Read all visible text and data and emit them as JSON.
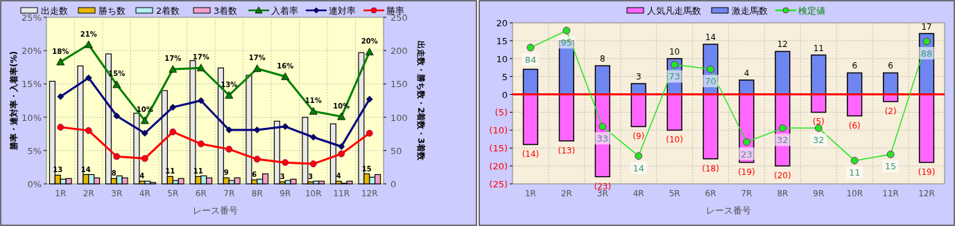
{
  "chart_data": [
    {
      "type": "bar",
      "categories": [
        "1R",
        "2R",
        "3R",
        "4R",
        "5R",
        "6R",
        "7R",
        "8R",
        "9R",
        "10R",
        "11R",
        "12R"
      ],
      "xlabel": "レース番号",
      "ylabel": "勝率・連対率・入着率(%)",
      "y2label": "出走数・勝ち数・2着数・3着数",
      "ylim": [
        0,
        25
      ],
      "yticks": [
        {
          "value": 0,
          "label": "0%"
        },
        {
          "value": 5,
          "label": "5%"
        },
        {
          "value": 10,
          "label": "10%"
        },
        {
          "value": 15,
          "label": "15%"
        },
        {
          "value": 20,
          "label": "20%"
        },
        {
          "value": 25,
          "label": "25%"
        }
      ],
      "y2lim": [
        0,
        250
      ],
      "y2ticks": [
        0,
        50,
        100,
        150,
        200,
        250
      ],
      "grid": true,
      "legend": "top",
      "series": [
        {
          "name": "出走数",
          "color": "#e8e8e8",
          "axis": "y2",
          "values": [
            154,
            177,
            195,
            106,
            140,
            185,
            174,
            163,
            94,
            100,
            90,
            197
          ]
        },
        {
          "name": "勝ち数",
          "color": "#e6b800",
          "axis": "y2",
          "values": [
            13,
            14,
            8,
            4,
            11,
            11,
            9,
            6,
            3,
            3,
            4,
            15
          ],
          "value_labels": [
            "13",
            "14",
            "8",
            "4",
            "11",
            "11",
            "9",
            "6",
            "3",
            "3",
            "4",
            "15"
          ]
        },
        {
          "name": "2着数",
          "color": "#b3f0f0",
          "axis": "y2",
          "values": [
            7,
            14,
            12,
            4,
            5,
            12,
            5,
            7,
            5,
            4,
            1,
            10
          ]
        },
        {
          "name": "3着数",
          "color": "#f0a0c8",
          "axis": "y2",
          "values": [
            8,
            9,
            9,
            2,
            8,
            9,
            9,
            15,
            7,
            4,
            4,
            14
          ]
        },
        {
          "name": "入着率",
          "type": "line",
          "color": "#008000",
          "marker": "triangle",
          "values": [
            18.3,
            20.9,
            14.9,
            9.5,
            17.2,
            17.4,
            13.3,
            17.3,
            16.1,
            10.9,
            10.1,
            19.8
          ],
          "value_labels": [
            "18%",
            "21%",
            "15%",
            "10%",
            "17%",
            "17%",
            "13%",
            "17%",
            "16%",
            "11%",
            "10%",
            "20%"
          ]
        },
        {
          "name": "連対率",
          "type": "line",
          "color": "#000080",
          "marker": "diamond",
          "values": [
            13.1,
            15.9,
            10.2,
            7.6,
            11.5,
            12.5,
            8.1,
            8.1,
            8.6,
            7.0,
            5.6,
            12.7
          ]
        },
        {
          "name": "勝率",
          "type": "line",
          "color": "#ff0000",
          "marker": "circle",
          "values": [
            8.5,
            8.0,
            4.1,
            3.8,
            7.8,
            6.0,
            5.2,
            3.7,
            3.2,
            3.0,
            4.5,
            7.6
          ]
        }
      ]
    },
    {
      "type": "bar",
      "stacked": true,
      "categories": [
        "1R",
        "2R",
        "3R",
        "4R",
        "5R",
        "6R",
        "7R",
        "8R",
        "9R",
        "10R",
        "11R",
        "12R"
      ],
      "xlabel": "レース番号",
      "ylim": [
        -25,
        20
      ],
      "yticks": [
        {
          "value": 20,
          "label": "20"
        },
        {
          "value": 15,
          "label": "15"
        },
        {
          "value": 10,
          "label": "10"
        },
        {
          "value": 5,
          "label": "5"
        },
        {
          "value": 0,
          "label": "0"
        },
        {
          "value": -5,
          "label": "(5)"
        },
        {
          "value": -10,
          "label": "(10)"
        },
        {
          "value": -15,
          "label": "(15)"
        },
        {
          "value": -20,
          "label": "(20)"
        },
        {
          "value": -25,
          "label": "(25)"
        }
      ],
      "y2lim": [
        -4,
        100
      ],
      "grid": true,
      "legend": "top",
      "ref_lines": [
        {
          "axis": "y",
          "value": 0,
          "color": "#ff0000"
        }
      ],
      "series": [
        {
          "name": "人気凡走馬数",
          "color": "#ff66ff",
          "values": [
            -14,
            -13,
            -23,
            -9,
            -10,
            -18,
            -19,
            -20,
            -5,
            -6,
            -2,
            -19
          ],
          "value_labels": [
            "(14)",
            "(13)",
            "(23)",
            "(9)",
            "(10)",
            "(18)",
            "(19)",
            "(20)",
            "(5)",
            "(6)",
            "(2)",
            "(19)"
          ]
        },
        {
          "name": "激走馬数",
          "color": "#6f86f0",
          "values": [
            7,
            15,
            8,
            3,
            10,
            14,
            4,
            12,
            11,
            6,
            6,
            17
          ],
          "value_labels": [
            null,
            null,
            "8",
            "3",
            "10",
            "14",
            "4",
            "12",
            "11",
            "6",
            "6",
            "17"
          ]
        },
        {
          "name": "検定値",
          "type": "line",
          "axis": "y2",
          "color": "#22e622",
          "marker": "circle",
          "values": [
            84,
            95,
            33,
            14,
            73,
            70,
            23,
            32,
            32,
            11,
            15,
            88
          ],
          "data_labels": true
        }
      ]
    }
  ]
}
